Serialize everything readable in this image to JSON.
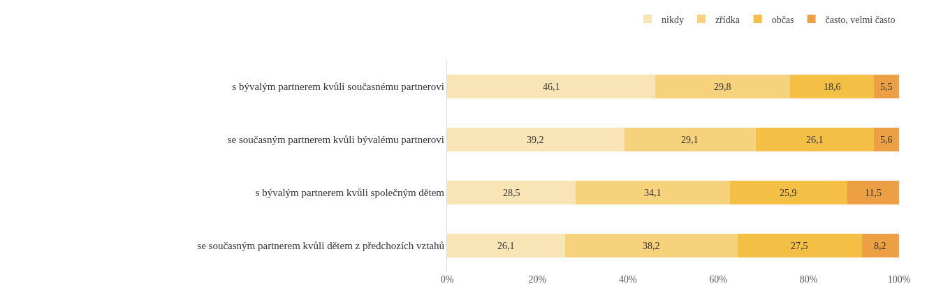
{
  "chart_data": {
    "type": "bar",
    "orientation": "horizontal",
    "stacked": true,
    "categories": [
      "s bývalým partnerem kvůli současnému partnerovi",
      "se současným partnerem kvůli bývalému partnerovi",
      "s bývalým partnerem kvůli společným dětem",
      "se současným partnerem kvůli dětem z předchozích vztahů"
    ],
    "series": [
      {
        "name": "nikdy",
        "color": "#f8e4b4",
        "values": [
          46.1,
          39.2,
          28.5,
          26.1
        ],
        "value_labels": [
          "46,1",
          "39,2",
          "28,5",
          "26,1"
        ]
      },
      {
        "name": "zřídka",
        "color": "#f6d27c",
        "values": [
          29.8,
          29.1,
          34.1,
          38.2
        ],
        "value_labels": [
          "29,8",
          "29,1",
          "34,1",
          "38,2"
        ]
      },
      {
        "name": "občas",
        "color": "#f3bf45",
        "values": [
          18.6,
          26.1,
          25.9,
          27.5
        ],
        "value_labels": [
          "18,6",
          "26,1",
          "25,9",
          "27,5"
        ]
      },
      {
        "name": "často, velmi často",
        "color": "#eda043",
        "values": [
          5.5,
          5.6,
          11.5,
          8.2
        ],
        "value_labels": [
          "5,5",
          "5,6",
          "11,5",
          "8,2"
        ]
      }
    ],
    "xlim": [
      0,
      100
    ],
    "xticks": [
      {
        "value": 0,
        "label": "0%"
      },
      {
        "value": 20,
        "label": "20%"
      },
      {
        "value": 40,
        "label": "40%"
      },
      {
        "value": 60,
        "label": "60%"
      },
      {
        "value": 80,
        "label": "80%"
      },
      {
        "value": 100,
        "label": "100%"
      }
    ],
    "grid": false,
    "legend": "top right"
  }
}
